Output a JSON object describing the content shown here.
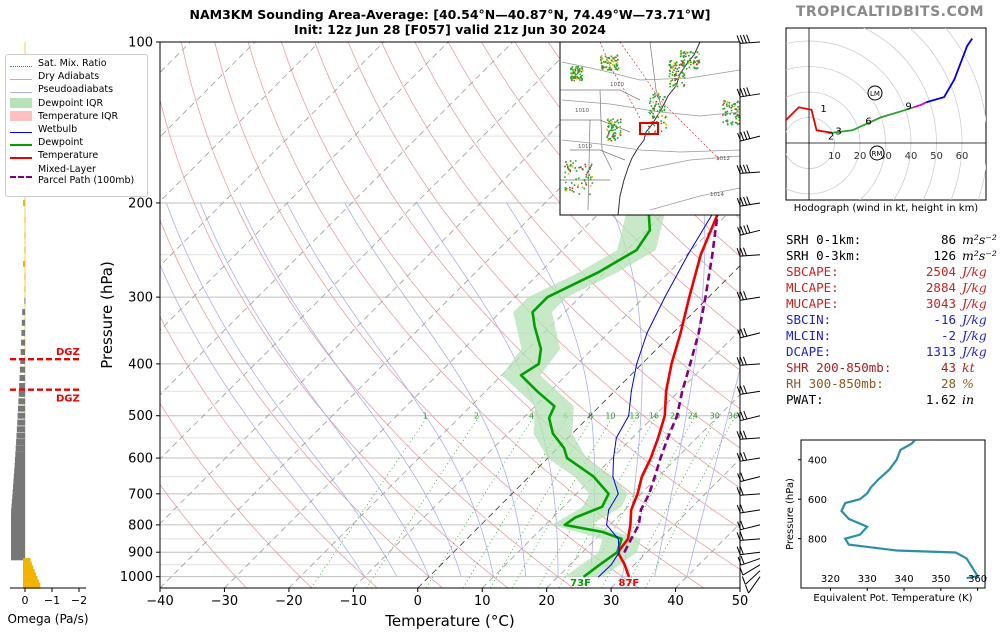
{
  "title": {
    "line1": "NAM3KM Sounding Area-Average: [40.54°N—40.87°N, 74.49°W—73.71°W]",
    "line2": "Init: 12z Jun 28 [F057] valid 21z Jun 30 2024"
  },
  "brand": "TROPICALTIDBITS.COM",
  "legend": {
    "items": [
      {
        "label": "Sat. Mix. Ratio",
        "style": "dotted",
        "color": "#2ca02c"
      },
      {
        "label": "Dry Adiabats",
        "style": "solid",
        "color": "#e8a0a0"
      },
      {
        "label": "Pseudoadiabats",
        "style": "solid",
        "color": "#aab0f0"
      },
      {
        "label": "Dewpoint IQR",
        "style": "fill",
        "color": "#b6e2b6"
      },
      {
        "label": "Temperature IQR",
        "style": "fill",
        "color": "#ffc0c0"
      },
      {
        "label": "Wetbulb",
        "style": "solid",
        "color": "#0000ee"
      },
      {
        "label": "Dewpoint",
        "style": "thick",
        "color": "#00a000"
      },
      {
        "label": "Temperature",
        "style": "thick",
        "color": "#ee0000"
      },
      {
        "label": "Mixed-Layer Parcel Path (100mb)",
        "label_line1": "Mixed-Layer",
        "label_line2": "Parcel Path (100mb)",
        "style": "dashed",
        "color": "#800080"
      }
    ]
  },
  "chart_data": [
    {
      "type": "line",
      "subtype": "skew-t log-p sounding",
      "xlabel": "Temperature (°C)",
      "ylabel": "Pressure (hPa)",
      "xlim": [
        -40,
        50
      ],
      "ylim": [
        1050,
        100
      ],
      "x_ticks": [
        -40,
        -30,
        -20,
        -10,
        0,
        10,
        20,
        30,
        40,
        50
      ],
      "y_ticks": [
        100,
        200,
        300,
        400,
        500,
        600,
        700,
        800,
        900,
        1000
      ],
      "y_scale": "log",
      "series": [
        {
          "name": "Temperature",
          "color": "#ee0000",
          "points": [
            [
              31,
              1000
            ],
            [
              28.5,
              950
            ],
            [
              25.5,
              900
            ],
            [
              25,
              850
            ],
            [
              23.2,
              800
            ],
            [
              21,
              750
            ],
            [
              19.5,
              700
            ],
            [
              17.5,
              650
            ],
            [
              16,
              600
            ],
            [
              14,
              550
            ],
            [
              11.6,
              500
            ],
            [
              8,
              450
            ],
            [
              4.6,
              400
            ],
            [
              1.2,
              350
            ],
            [
              -3,
              300
            ],
            [
              -7.8,
              250
            ],
            [
              -12.5,
              200
            ],
            [
              -14.6,
              175
            ],
            [
              -15.8,
              150
            ],
            [
              -14.4,
              125
            ],
            [
              -11,
              110
            ],
            [
              -6.5,
              100
            ]
          ]
        },
        {
          "name": "Dewpoint",
          "color": "#00a000",
          "points": [
            [
              24,
              1000
            ],
            [
              24.6,
              950
            ],
            [
              25.4,
              900
            ],
            [
              24,
              850
            ],
            [
              20,
              825
            ],
            [
              13,
              800
            ],
            [
              13.5,
              775
            ],
            [
              16,
              740
            ],
            [
              15,
              700
            ],
            [
              10,
              650
            ],
            [
              3,
              600
            ],
            [
              1,
              575
            ],
            [
              -3,
              540
            ],
            [
              -6,
              505
            ],
            [
              -7,
              480
            ],
            [
              -12,
              450
            ],
            [
              -17,
              420
            ],
            [
              -16,
              400
            ],
            [
              -18,
              375
            ],
            [
              -22.5,
              340
            ],
            [
              -25,
              320
            ],
            [
              -25,
              300
            ],
            [
              -21,
              270
            ],
            [
              -18.5,
              245
            ],
            [
              -19.5,
              225
            ],
            [
              -24,
              200
            ],
            [
              -26,
              180
            ],
            [
              -26,
              165
            ],
            [
              -25,
              150
            ],
            [
              -25,
              130
            ],
            [
              -27.5,
              110
            ],
            [
              -31,
              100
            ]
          ]
        },
        {
          "name": "Wetbulb",
          "color": "#0000ee",
          "points": [
            [
              26.3,
              1000
            ],
            [
              26.4,
              950
            ],
            [
              25.7,
              900
            ],
            [
              23.5,
              850
            ],
            [
              19.5,
              800
            ],
            [
              17.5,
              750
            ],
            [
              16.5,
              700
            ],
            [
              13,
              650
            ],
            [
              10.2,
              600
            ],
            [
              7.5,
              550
            ],
            [
              6,
              500
            ],
            [
              2.6,
              450
            ],
            [
              -0.8,
              400
            ],
            [
              -4,
              350
            ],
            [
              -6.8,
              300
            ],
            [
              -9.8,
              250
            ],
            [
              -13,
              200
            ],
            [
              -14.8,
              175
            ],
            [
              -16,
              150
            ]
          ]
        },
        {
          "name": "Mixed-Layer Parcel Path (100mb)",
          "color": "#800080",
          "points": [
            [
              26.5,
              900
            ],
            [
              25.5,
              850
            ],
            [
              24.5,
              800
            ],
            [
              22.5,
              750
            ],
            [
              21.3,
              700
            ],
            [
              19.5,
              650
            ],
            [
              17.5,
              600
            ],
            [
              15.5,
              550
            ],
            [
              13.5,
              500
            ],
            [
              10.5,
              450
            ],
            [
              7.5,
              400
            ],
            [
              4,
              350
            ],
            [
              -0.5,
              300
            ],
            [
              -6,
              250
            ],
            [
              -13,
              200
            ],
            [
              -17.5,
              175
            ],
            [
              -22.5,
              150
            ],
            [
              -28,
              125
            ],
            [
              -32.5,
              110
            ],
            [
              -35,
              100
            ]
          ]
        }
      ],
      "iqr_bands": [
        {
          "name": "Dewpoint IQR",
          "color": "#b6e2b6",
          "points": [
            [
              24,
              1000
            ],
            [
              25.5,
              900
            ],
            [
              24,
              850
            ],
            [
              14,
              800
            ],
            [
              16,
              740
            ],
            [
              15,
              700
            ],
            [
              10,
              650
            ],
            [
              3,
              600
            ],
            [
              -3,
              540
            ],
            [
              -7,
              480
            ],
            [
              -17,
              420
            ],
            [
              -18,
              375
            ],
            [
              -25,
              320
            ],
            [
              -25,
              300
            ],
            [
              -21,
              270
            ],
            [
              -18.5,
              245
            ],
            [
              -24,
              200
            ],
            [
              -26,
              165
            ],
            [
              -25,
              130
            ],
            [
              -31,
              100
            ]
          ]
        }
      ],
      "surface_labels": [
        {
          "text": "73F",
          "color": "#00a000",
          "x": 23.5
        },
        {
          "text": "87F",
          "color": "#ee0000",
          "x": 31
        }
      ],
      "mixing_ratio_labels": [
        "1",
        "2",
        "4",
        "6",
        "8",
        "10",
        "13",
        "16",
        "20",
        "24",
        "30",
        "36"
      ],
      "wind_barb_levels": [
        1000,
        975,
        950,
        925,
        900,
        850,
        800,
        750,
        700,
        650,
        600,
        550,
        500,
        450,
        400,
        350,
        300,
        250,
        225,
        200,
        175,
        150,
        125,
        100
      ],
      "grid": true
    },
    {
      "type": "line",
      "title": "Hodograph (wind in kt, height in km)",
      "ring_labels": [
        "10",
        "20",
        "30",
        "40",
        "50",
        "60"
      ],
      "markers": [
        "LM",
        "RM"
      ],
      "series": [
        {
          "name": "0-1 km",
          "color": "#ee0000",
          "points": [
            [
              -10,
              8
            ],
            [
              -4,
              14
            ],
            [
              1,
              13
            ],
            [
              3,
              5
            ],
            [
              9,
              4
            ]
          ]
        },
        {
          "name": "1-3 km",
          "color": "#2ca02c",
          "points": [
            [
              9,
              4
            ],
            [
              17,
              5
            ],
            [
              28,
              10
            ],
            [
              38,
              13
            ],
            [
              41,
              14
            ]
          ]
        },
        {
          "name": "3-6 km",
          "color": "#cc00cc",
          "points": [
            [
              41,
              14
            ],
            [
              44,
              15
            ],
            [
              46,
              16
            ]
          ]
        },
        {
          "name": "6-9 km",
          "color": "#0000ee",
          "points": [
            [
              46,
              16
            ],
            [
              53,
              18
            ],
            [
              57,
              25
            ],
            [
              62,
              38
            ],
            [
              64,
              41
            ]
          ]
        }
      ],
      "height_labels": [
        "1",
        "2",
        "3",
        "6",
        "9"
      ]
    },
    {
      "type": "line",
      "xlabel": "Equivalent Pot. Temperature (K)",
      "ylabel": "Pressure (hPa)",
      "xlim": [
        312,
        362
      ],
      "ylim": [
        1050,
        300
      ],
      "x_ticks": [
        320,
        330,
        340,
        350,
        360
      ],
      "y_ticks": [
        400,
        600,
        800
      ],
      "series": [
        {
          "name": "Theta-e",
          "color": "#2a8fa8",
          "points": [
            [
              357,
              1000
            ],
            [
              360,
              990
            ],
            [
              359,
              960
            ],
            [
              357,
              900
            ],
            [
              354,
              870
            ],
            [
              338,
              860
            ],
            [
              325,
              830
            ],
            [
              324,
              800
            ],
            [
              328,
              780
            ],
            [
              330,
              740
            ],
            [
              325,
              700
            ],
            [
              323,
              660
            ],
            [
              324,
              620
            ],
            [
              328,
              600
            ],
            [
              330,
              570
            ],
            [
              331,
              540
            ],
            [
              333,
              500
            ],
            [
              336,
              450
            ],
            [
              338,
              400
            ],
            [
              339,
              350
            ],
            [
              342,
              320
            ],
            [
              343,
              300
            ]
          ]
        }
      ]
    },
    {
      "type": "bar",
      "xlabel": "Omega (Pa/s)",
      "x_ticks": [
        "0",
        "−1",
        "−2"
      ],
      "markers": [
        {
          "label": "DGZ",
          "color": "#ee0000"
        },
        {
          "label": "DGZ",
          "color": "#ee0000"
        }
      ]
    }
  ],
  "stats": [
    {
      "label": "SRH 0-1km:",
      "value": "86",
      "unit": "m²s⁻²",
      "color": "#000000"
    },
    {
      "label": "SRH 0-3km:",
      "value": "126",
      "unit": "m²s⁻²",
      "color": "#000000"
    },
    {
      "label": "SBCAPE:",
      "value": "2504",
      "unit": "J/kg",
      "color": "#cc2222"
    },
    {
      "label": "MLCAPE:",
      "value": "2884",
      "unit": "J/kg",
      "color": "#cc2222"
    },
    {
      "label": "MUCAPE:",
      "value": "3043",
      "unit": "J/kg",
      "color": "#cc2222"
    },
    {
      "label": "SBCIN:",
      "value": "-16",
      "unit": "J/kg",
      "color": "#2222cc"
    },
    {
      "label": "MLCIN:",
      "value": "-2",
      "unit": "J/kg",
      "color": "#2222cc"
    },
    {
      "label": "DCAPE:",
      "value": "1313",
      "unit": "J/kg",
      "color": "#2222cc"
    },
    {
      "label": "SHR 200-850mb:",
      "value": "43",
      "unit": "kt",
      "color": "#aa2222"
    },
    {
      "label": "RH 300-850mb:",
      "value": "28",
      "unit": "%",
      "color": "#8a5a1a"
    },
    {
      "label": "PWAT:",
      "value": "1.62",
      "unit": "in",
      "color": "#000000"
    }
  ],
  "inset_map": {
    "isobar_labels": [
      "1010",
      "1010",
      "1010",
      "1012",
      "1014"
    ]
  }
}
